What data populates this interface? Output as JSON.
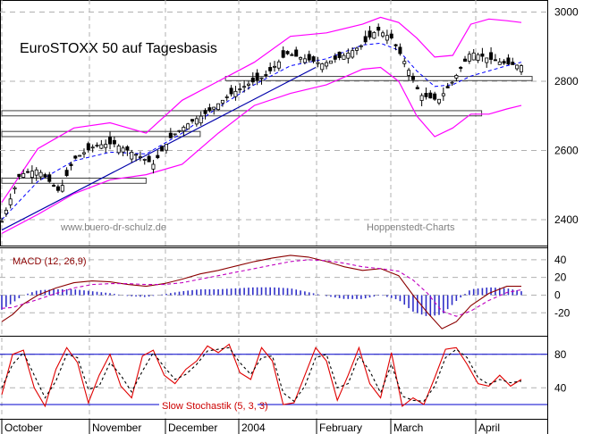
{
  "chart_data": [
    {
      "panel": "price",
      "type": "candlestick",
      "title": "EuroSTOXX 50 auf Tagesbasis",
      "watermark_left": "www.buero-dr-schulz.de",
      "watermark_right": "Hoppenstedt-Charts",
      "y_ticks": [
        "3000",
        "2800",
        "2600",
        "2400"
      ],
      "y_tick_values": [
        3000,
        2800,
        2600,
        2400
      ],
      "ylim": [
        2325,
        3035
      ],
      "x_month_labels": [
        "October",
        "November",
        "December",
        "2004",
        "February",
        "March",
        "April"
      ],
      "x_range_days": [
        0,
        145
      ],
      "series": [
        {
          "name": "close",
          "x": [
            0,
            5,
            10,
            16,
            20,
            26,
            31,
            37,
            42,
            47,
            52,
            57,
            63,
            68,
            73,
            79,
            84,
            89,
            94,
            100,
            104,
            108,
            112,
            116,
            121,
            125,
            130,
            135,
            140,
            144
          ],
          "values": [
            2395,
            2530,
            2545,
            2480,
            2575,
            2615,
            2620,
            2590,
            2560,
            2640,
            2680,
            2710,
            2760,
            2790,
            2815,
            2880,
            2865,
            2850,
            2870,
            2905,
            2950,
            2925,
            2850,
            2760,
            2745,
            2800,
            2885,
            2865,
            2850,
            2845
          ]
        },
        {
          "name": "bollinger upper",
          "x": [
            0,
            10,
            20,
            30,
            40,
            50,
            60,
            70,
            80,
            90,
            100,
            105,
            110,
            115,
            120,
            125,
            130,
            135,
            140,
            144
          ],
          "values": [
            2450,
            2605,
            2665,
            2680,
            2650,
            2745,
            2800,
            2855,
            2930,
            2940,
            2965,
            2985,
            2970,
            2925,
            2870,
            2875,
            2965,
            2980,
            2975,
            2970
          ]
        },
        {
          "name": "bollinger lower",
          "x": [
            0,
            10,
            20,
            30,
            40,
            50,
            60,
            70,
            80,
            90,
            100,
            105,
            110,
            115,
            120,
            125,
            130,
            135,
            140,
            144
          ],
          "values": [
            2360,
            2415,
            2475,
            2515,
            2530,
            2560,
            2650,
            2730,
            2765,
            2790,
            2835,
            2840,
            2800,
            2700,
            2640,
            2665,
            2705,
            2705,
            2720,
            2730
          ]
        },
        {
          "name": "moving average",
          "x": [
            0,
            10,
            20,
            30,
            40,
            50,
            60,
            70,
            80,
            90,
            100,
            105,
            110,
            115,
            120,
            125,
            130,
            140,
            144
          ],
          "values": [
            2400,
            2510,
            2570,
            2595,
            2590,
            2650,
            2725,
            2790,
            2845,
            2865,
            2905,
            2910,
            2890,
            2830,
            2785,
            2790,
            2815,
            2845,
            2855
          ]
        }
      ],
      "support_boxes": [
        {
          "from_day": 62,
          "to_day": 147,
          "low": 2802,
          "high": 2814
        },
        {
          "from_day": 0,
          "to_day": 133,
          "low": 2700,
          "high": 2715
        },
        {
          "from_day": 0,
          "to_day": 55,
          "low": 2640,
          "high": 2655
        },
        {
          "from_day": 0,
          "to_day": 40,
          "low": 2505,
          "high": 2520
        }
      ],
      "trendline": {
        "from": [
          0,
          2370
        ],
        "to": [
          87,
          2840
        ]
      }
    },
    {
      "panel": "macd",
      "type": "line",
      "label": "MACD (12, 26,9)",
      "y_ticks": [
        "40",
        "20",
        "0",
        "-20"
      ],
      "y_tick_values": [
        40,
        20,
        0,
        -20
      ],
      "ylim": [
        -45,
        52
      ],
      "x": [
        0,
        3,
        6,
        10,
        15,
        20,
        25,
        30,
        35,
        40,
        45,
        50,
        55,
        60,
        65,
        70,
        75,
        80,
        85,
        90,
        95,
        100,
        105,
        110,
        114,
        118,
        122,
        126,
        130,
        135,
        140,
        144
      ],
      "series": [
        {
          "name": "macd",
          "values": [
            -30,
            -22,
            -10,
            0,
            8,
            14,
            16,
            15,
            12,
            10,
            13,
            18,
            24,
            28,
            33,
            38,
            42,
            45,
            43,
            38,
            32,
            28,
            30,
            22,
            0,
            -20,
            -38,
            -30,
            -12,
            2,
            10,
            10
          ]
        },
        {
          "name": "signal",
          "values": [
            -15,
            -14,
            -10,
            -5,
            2,
            8,
            12,
            13,
            13,
            12,
            12,
            14,
            18,
            22,
            26,
            30,
            34,
            38,
            40,
            39,
            36,
            32,
            30,
            27,
            17,
            2,
            -18,
            -24,
            -18,
            -6,
            3,
            6
          ]
        }
      ]
    },
    {
      "panel": "stochastic",
      "type": "line",
      "label": "Slow Stochastik (5, 3, 3)",
      "y_ticks": [
        "80",
        "40"
      ],
      "y_tick_values": [
        80,
        40
      ],
      "ylim": [
        4,
        100
      ],
      "reference_lines": [
        80,
        20
      ],
      "x": [
        0,
        3,
        6,
        9,
        12,
        15,
        18,
        21,
        24,
        27,
        30,
        33,
        36,
        39,
        42,
        45,
        48,
        51,
        54,
        57,
        60,
        63,
        66,
        69,
        72,
        75,
        78,
        81,
        84,
        87,
        90,
        93,
        96,
        99,
        102,
        105,
        108,
        111,
        114,
        117,
        120,
        123,
        126,
        129,
        132,
        135,
        138,
        141,
        144
      ],
      "series": [
        {
          "name": "%K",
          "values": [
            32,
            80,
            85,
            40,
            18,
            62,
            88,
            70,
            22,
            55,
            80,
            42,
            28,
            78,
            85,
            55,
            45,
            62,
            72,
            90,
            82,
            92,
            58,
            50,
            88,
            72,
            20,
            22,
            55,
            88,
            72,
            25,
            55,
            88,
            45,
            28,
            82,
            18,
            28,
            20,
            52,
            86,
            88,
            68,
            45,
            42,
            55,
            42,
            50
          ]
        },
        {
          "name": "%D",
          "values": [
            40,
            68,
            82,
            55,
            28,
            48,
            80,
            76,
            38,
            42,
            70,
            55,
            35,
            60,
            82,
            65,
            50,
            56,
            68,
            84,
            86,
            88,
            70,
            56,
            76,
            78,
            34,
            24,
            42,
            76,
            80,
            40,
            45,
            78,
            60,
            34,
            68,
            30,
            25,
            24,
            42,
            76,
            86,
            76,
            52,
            44,
            50,
            46,
            48
          ]
        }
      ]
    }
  ],
  "colors": {
    "price_bar": "#000000",
    "band": "#ff00ff",
    "moving_average": "#0000ff",
    "trendline": "#0000aa",
    "grid": "#b0b0b0",
    "macd_line": "#8b0000",
    "macd_histogram": "#3030c8",
    "stochastic_k": "#e00000",
    "stochastic_d": "#000000",
    "stochastic_level": "#0000cc"
  }
}
